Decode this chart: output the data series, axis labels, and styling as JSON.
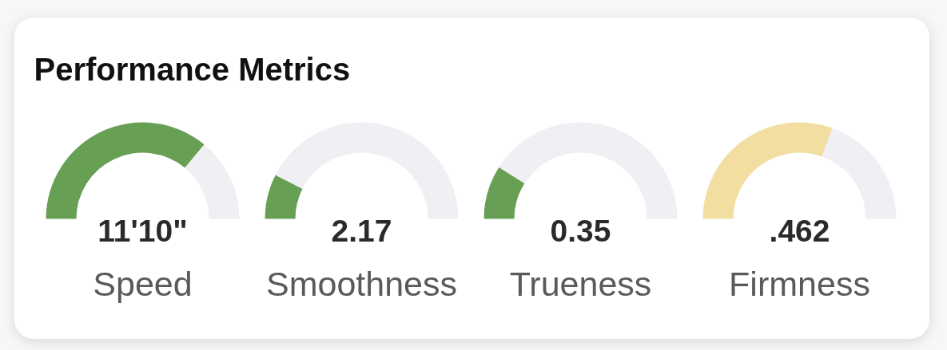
{
  "chart_data": [
    {
      "type": "other",
      "title": "Performance Metrics"
    },
    {
      "type": "donut",
      "categories": [
        null,
        null
      ],
      "values": [
        72,
        28
      ],
      "colors": [
        "#67a055",
        "#efeff4"
      ],
      "annotations": [
        "11'10\""
      ],
      "xlabel": "Speed"
    },
    {
      "type": "donut",
      "categories": [
        null,
        null
      ],
      "values": [
        15,
        85
      ],
      "colors": [
        "#67a055",
        "#efeff4"
      ],
      "annotations": [
        "2.17"
      ],
      "xlabel": "Smoothness"
    },
    {
      "type": "donut",
      "categories": [
        null,
        null
      ],
      "values": [
        18,
        82
      ],
      "colors": [
        "#67a055",
        "#efeff4"
      ],
      "annotations": [
        "0.35"
      ],
      "xlabel": "Trueness"
    },
    {
      "type": "donut",
      "categories": [
        null,
        null
      ],
      "values": [
        61,
        39
      ],
      "colors": [
        "#f2dea0",
        "#efeff4"
      ],
      "annotations": [
        ".462"
      ],
      "xlabel": "Firmness"
    }
  ]
}
